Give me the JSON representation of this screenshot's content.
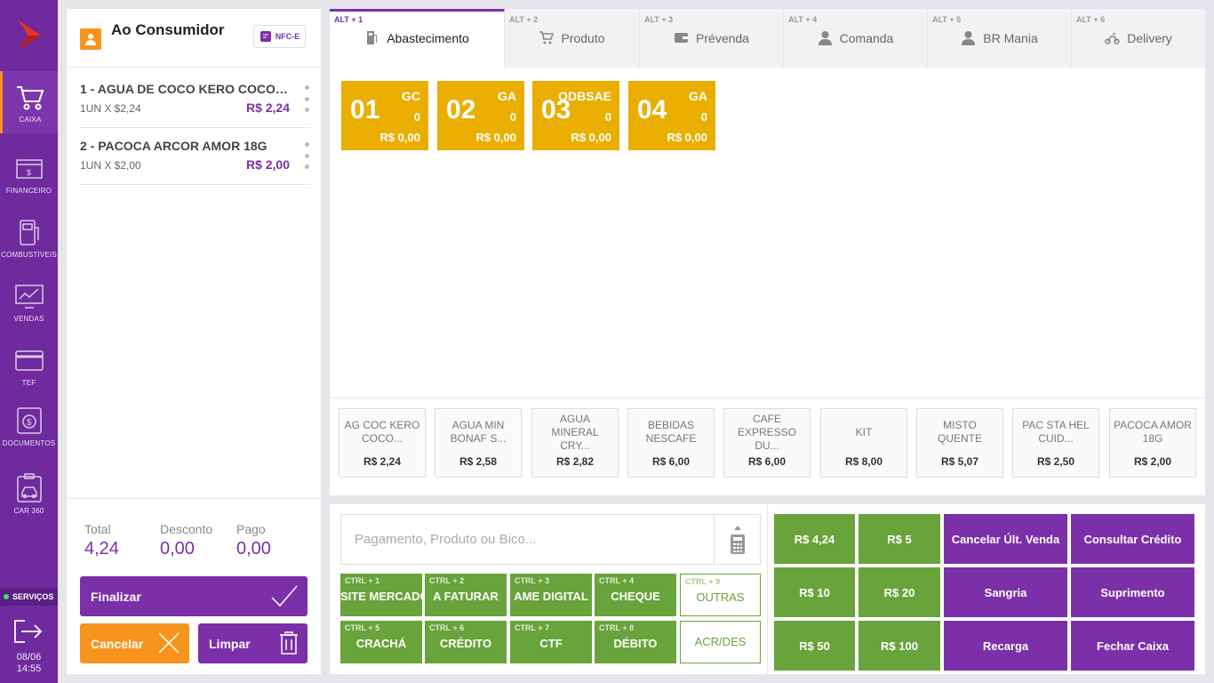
{
  "sidebar": {
    "logo_icon": "brand-logo-icon",
    "items": [
      {
        "label": "CAIXA",
        "icon": "cart-icon",
        "active": true
      },
      {
        "label": "FINANCEIRO",
        "icon": "cash-register-icon",
        "active": false
      },
      {
        "label": "COMBUSTÍVEIS",
        "icon": "fuel-pump-icon",
        "active": false
      },
      {
        "label": "VENDAS",
        "icon": "chart-monitor-icon",
        "active": false
      },
      {
        "label": "TEF",
        "icon": "credit-card-icon",
        "active": false
      },
      {
        "label": "DOCUMENTOS",
        "icon": "document-money-icon",
        "active": false
      },
      {
        "label": "CAR 360",
        "icon": "car-clipboard-icon",
        "active": false
      }
    ],
    "services_label": "SERVIÇOS",
    "date": "08/06",
    "time": "14:55"
  },
  "cart": {
    "customer": "Ao Consumidor",
    "nfce_label": "NFC-E",
    "items": [
      {
        "name": "1 - AGUA DE COCO KERO COCO ...",
        "qty": "1UN X $2,24",
        "price": "R$ 2,24"
      },
      {
        "name": "2 - PACOCA ARCOR AMOR 18G",
        "qty": "1UN X $2,00",
        "price": "R$ 2,00"
      }
    ],
    "totals": {
      "total_label": "Total",
      "total": "4,24",
      "discount_label": "Desconto",
      "discount": "0,00",
      "paid_label": "Pago",
      "paid": "0,00"
    },
    "finalize_label": "Finalizar",
    "cancel_label": "Cancelar",
    "clear_label": "Limpar"
  },
  "tabs": [
    {
      "key": "ALT + 1",
      "label": "Abastecimento",
      "icon": "fuel-pump-icon",
      "active": true
    },
    {
      "key": "ALT + 2",
      "label": "Produto",
      "icon": "shopping-cart-icon",
      "active": false
    },
    {
      "key": "ALT + 3",
      "label": "Prévenda",
      "icon": "wallet-icon",
      "active": false
    },
    {
      "key": "ALT + 4",
      "label": "Comanda",
      "icon": "person-icon",
      "active": false
    },
    {
      "key": "ALT + 5",
      "label": "BR Mania",
      "icon": "person-icon",
      "active": false
    },
    {
      "key": "ALT + 6",
      "label": "Delivery",
      "icon": "motorcycle-icon",
      "active": false
    }
  ],
  "pumps": [
    {
      "number": "01",
      "fuel": "GC",
      "qty": "0",
      "value": "R$ 0,00"
    },
    {
      "number": "02",
      "fuel": "GA",
      "qty": "0",
      "value": "R$ 0,00"
    },
    {
      "number": "03",
      "fuel": "ODBSAE",
      "qty": "0",
      "value": "R$ 0,00"
    },
    {
      "number": "04",
      "fuel": "GA",
      "qty": "0",
      "value": "R$ 0,00"
    }
  ],
  "products": [
    {
      "name": "AG COC KERO COCO...",
      "price": "R$ 2,24"
    },
    {
      "name": "AGUA MIN BONAF S...",
      "price": "R$ 2,58"
    },
    {
      "name": "AGUA MINERAL CRY...",
      "price": "R$ 2,82"
    },
    {
      "name": "BEBIDAS NESCAFE",
      "price": "R$ 6,00"
    },
    {
      "name": "CAFE EXPRESSO DU...",
      "price": "R$ 6,00"
    },
    {
      "name": "KIT",
      "price": "R$ 8,00"
    },
    {
      "name": "MISTO QUENTE",
      "price": "R$ 5,07"
    },
    {
      "name": "PAC STA HEL CUID...",
      "price": "R$ 2,50"
    },
    {
      "name": "PACOCA AMOR 18G",
      "price": "R$ 2,00"
    }
  ],
  "payment": {
    "search_placeholder": "Pagamento, Produto ou Bico...",
    "methods": [
      {
        "key": "CTRL + 1",
        "label": "SITE MERCADO",
        "style": "filled"
      },
      {
        "key": "CTRL + 2",
        "label": "A FATURAR",
        "style": "filled"
      },
      {
        "key": "CTRL + 3",
        "label": "AME DIGITAL",
        "style": "filled"
      },
      {
        "key": "CTRL + 4",
        "label": "CHEQUE",
        "style": "filled"
      },
      {
        "key": "CTRL + 9",
        "label": "OUTRAS",
        "style": "outline"
      },
      {
        "key": "CTRL + 5",
        "label": "CRACHÁ",
        "style": "filled"
      },
      {
        "key": "CTRL + 6",
        "label": "CRÉDITO",
        "style": "filled"
      },
      {
        "key": "CTRL + 7",
        "label": "CTF",
        "style": "filled"
      },
      {
        "key": "CTRL + 8",
        "label": "DÉBITO",
        "style": "filled"
      },
      {
        "key": "",
        "label": "ACR/DES",
        "style": "outline"
      }
    ],
    "quick": [
      {
        "label": "R$ 4,24",
        "color": "green"
      },
      {
        "label": "R$ 5",
        "color": "green"
      },
      {
        "label": "Cancelar Últ. Venda",
        "color": "purple"
      },
      {
        "label": "Consultar Crédito",
        "color": "purple"
      },
      {
        "label": "R$ 10",
        "color": "green"
      },
      {
        "label": "R$ 20",
        "color": "green"
      },
      {
        "label": "Sangria",
        "color": "purple"
      },
      {
        "label": "Suprimento",
        "color": "purple"
      },
      {
        "label": "R$ 50",
        "color": "green"
      },
      {
        "label": "R$ 100",
        "color": "green"
      },
      {
        "label": "Recarga",
        "color": "purple"
      },
      {
        "label": "Fechar Caixa",
        "color": "purple"
      }
    ]
  },
  "colors": {
    "purple": "#7b2fa8",
    "sidebar": "#6f2a9e",
    "orange": "#f7941d",
    "pump": "#e9ae00",
    "green": "#68a33b"
  }
}
